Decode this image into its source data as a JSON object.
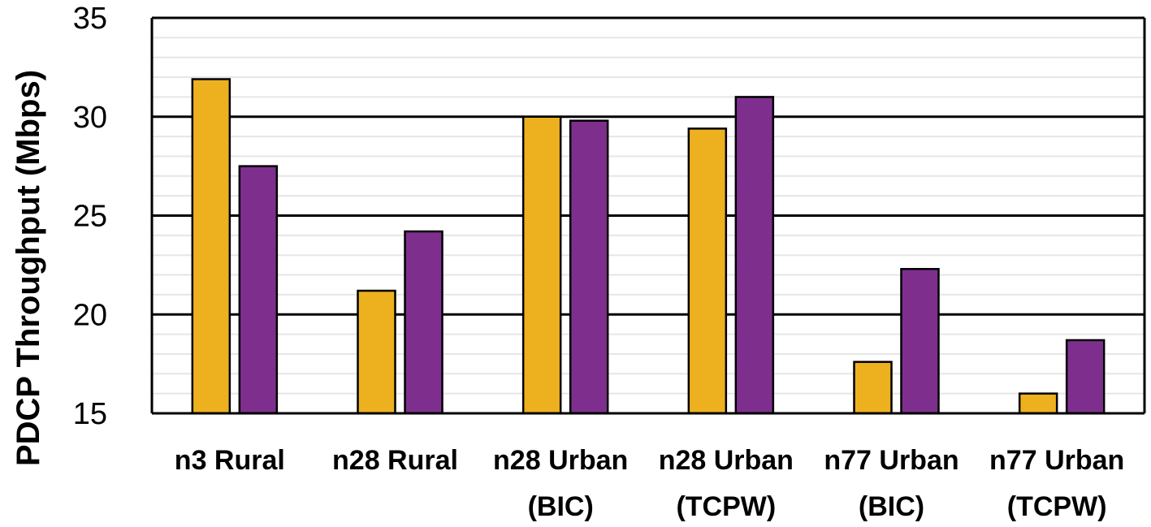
{
  "chart_data": {
    "type": "bar",
    "title": "",
    "xlabel": "",
    "ylabel": "PDCP Throughput (Mbps)",
    "ylim": [
      15,
      35
    ],
    "yticks": [
      15,
      20,
      25,
      30,
      35
    ],
    "grid": "horizontal major and minor",
    "legend": "none",
    "categories": [
      [
        "n3 Rural"
      ],
      [
        "n28 Rural"
      ],
      [
        "n28 Urban",
        "(BIC)"
      ],
      [
        "n28 Urban",
        "(TCPW)"
      ],
      [
        "n77 Urban",
        "(BIC)"
      ],
      [
        "n77 Urban",
        "(TCPW)"
      ]
    ],
    "series": [
      {
        "color": "#EDB120",
        "values": [
          31.9,
          21.2,
          30.0,
          29.4,
          17.6,
          16.0
        ]
      },
      {
        "color": "#7E2F8E",
        "values": [
          27.5,
          24.2,
          29.8,
          31.0,
          22.3,
          18.7
        ]
      }
    ]
  }
}
